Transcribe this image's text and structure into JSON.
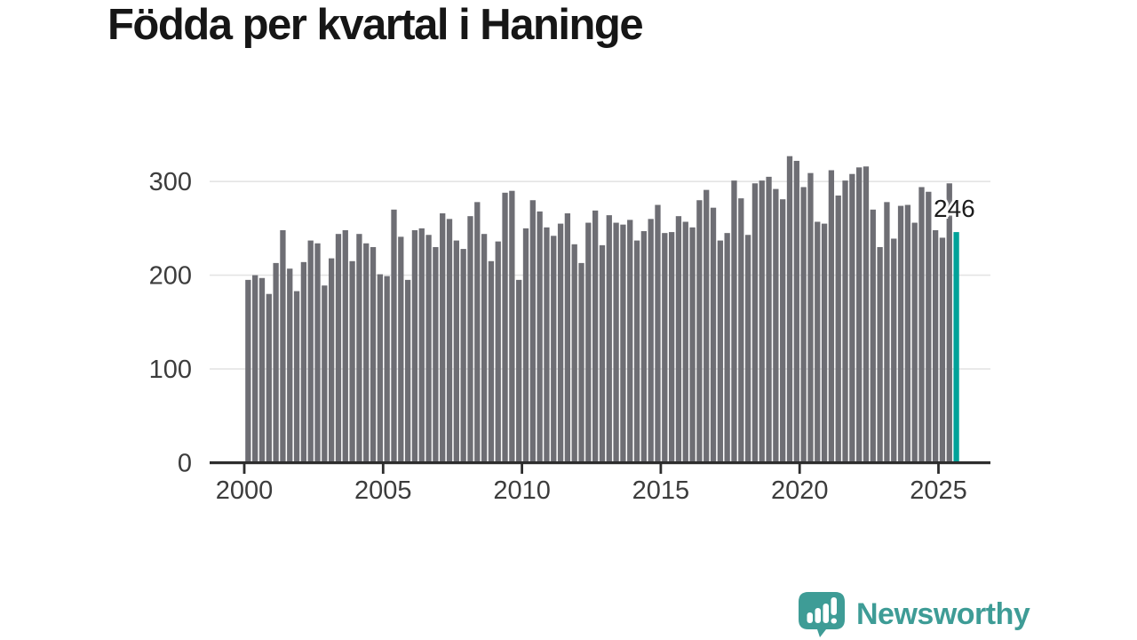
{
  "title": "Födda per kvartal i Haninge",
  "colors": {
    "bar": "#6e6e74",
    "highlight": "#00a299",
    "title_text": "#161616",
    "axis_text": "#3c3c3c",
    "axis_line": "#2d2d2d",
    "gridline": "#e4e4e4",
    "annotation_text": "#1c1c1c",
    "brand": "#3e9c96"
  },
  "chart_data": {
    "type": "bar",
    "title": "Födda per kvartal i Haninge",
    "frequency": "quarterly",
    "x_start": "2000-Q1",
    "x_end": "2025-Q3",
    "values": [
      195,
      200,
      197,
      180,
      213,
      248,
      207,
      183,
      214,
      237,
      234,
      189,
      218,
      244,
      248,
      215,
      244,
      234,
      230,
      201,
      199,
      270,
      241,
      195,
      248,
      250,
      243,
      230,
      266,
      260,
      237,
      228,
      263,
      278,
      244,
      215,
      236,
      288,
      290,
      195,
      250,
      280,
      268,
      251,
      242,
      255,
      266,
      233,
      213,
      256,
      269,
      232,
      264,
      256,
      254,
      259,
      237,
      247,
      260,
      275,
      245,
      246,
      263,
      257,
      251,
      280,
      291,
      272,
      237,
      245,
      301,
      282,
      243,
      298,
      301,
      305,
      292,
      281,
      327,
      322,
      294,
      309,
      257,
      255,
      312,
      285,
      301,
      308,
      315,
      316,
      270,
      230,
      278,
      239,
      274,
      275,
      256,
      294,
      289,
      248,
      240,
      298,
      246
    ],
    "y_ticks": [
      "0",
      "100",
      "200",
      "300"
    ],
    "x_ticks": [
      "2000",
      "2005",
      "2010",
      "2015",
      "2020",
      "2025"
    ],
    "ylim": [
      0,
      340
    ],
    "grid": "horizontal",
    "legend": "none",
    "highlight": {
      "index": 102,
      "value": 246
    },
    "annotation": {
      "text": "246"
    }
  },
  "footer": {
    "brand": "Newsworthy",
    "logo_icon": "bar-chart-speech-bubble-icon"
  }
}
